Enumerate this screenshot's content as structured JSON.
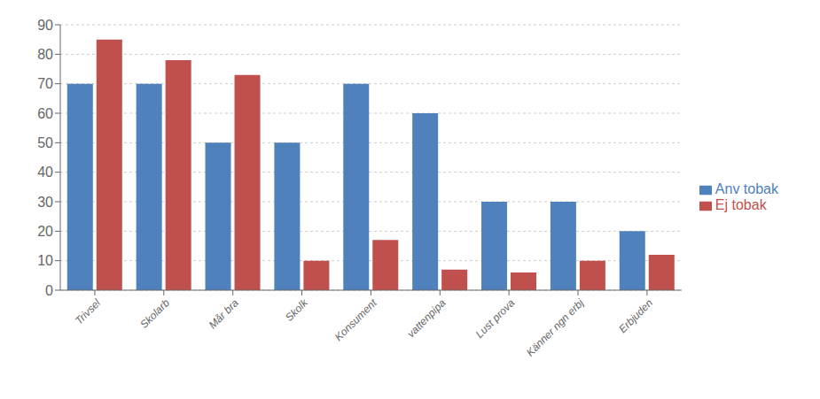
{
  "chart_data": {
    "type": "bar",
    "categories": [
      "Trivsel",
      "Skolarb",
      "Mår bra",
      "Skolk",
      "Konsument",
      "vattenpipa",
      "Lust prova",
      "Känner ngn erbj",
      "Erbjuden"
    ],
    "series": [
      {
        "name": "Anv tobak",
        "color": "#4F81BD",
        "values": [
          70,
          70,
          50,
          50,
          70,
          60,
          30,
          30,
          20
        ]
      },
      {
        "name": "Ej tobak",
        "color": "#C0504D",
        "values": [
          85,
          78,
          73,
          10,
          17,
          7,
          6,
          10,
          12
        ]
      }
    ],
    "ylim": [
      0,
      90
    ],
    "yticks": [
      0,
      10,
      20,
      30,
      40,
      50,
      60,
      70,
      80,
      90
    ],
    "grid": true,
    "legend": "right"
  }
}
